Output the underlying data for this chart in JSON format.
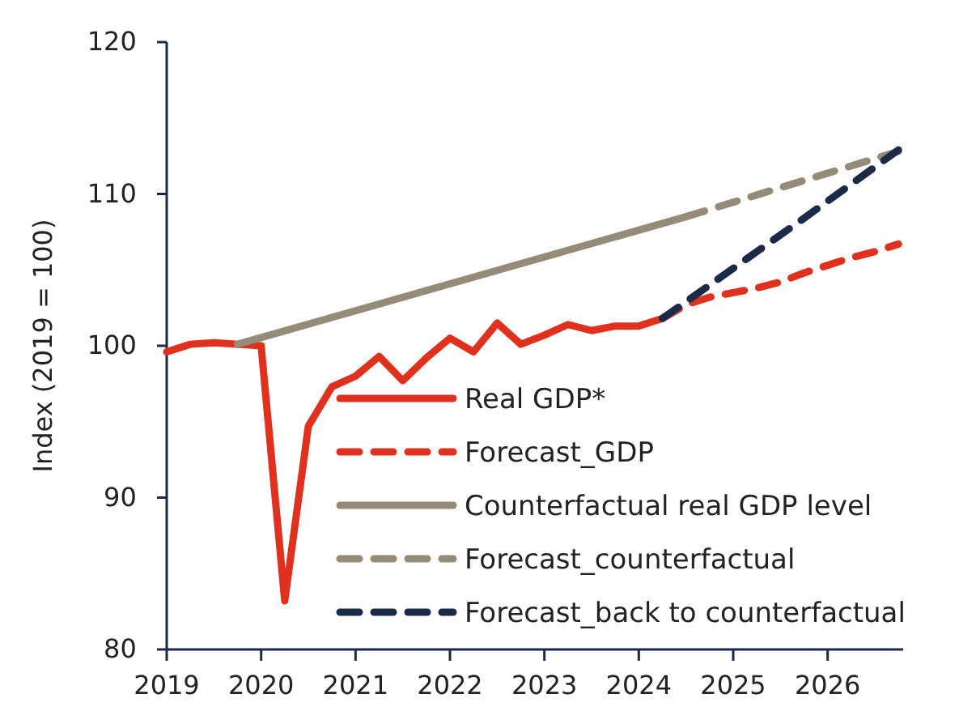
{
  "chart_data": {
    "type": "line",
    "ylabel": "Index (2019 = 100)",
    "xlim": [
      2019,
      2026.8
    ],
    "xticks": [
      2019,
      2020,
      2021,
      2022,
      2023,
      2024,
      2025,
      2026
    ],
    "ylim": [
      80,
      120
    ],
    "yticks": [
      80,
      90,
      100,
      110,
      120
    ],
    "grid": false,
    "legend": "bottom right",
    "series": [
      {
        "name": "Real GDP*",
        "color": "#e0301e",
        "line_style": "solid",
        "x": [
          2019,
          2019.25,
          2019.5,
          2019.75,
          2020,
          2020.25,
          2020.5,
          2020.75,
          2021,
          2021.25,
          2021.5,
          2021.75,
          2022,
          2022.25,
          2022.5,
          2022.75,
          2023,
          2023.25,
          2023.5,
          2023.75,
          2024,
          2024.25
        ],
        "values": [
          99.6,
          100.1,
          100.2,
          100.1,
          100.0,
          83.2,
          94.7,
          97.3,
          98.0,
          99.3,
          97.7,
          99.2,
          100.5,
          99.6,
          101.5,
          100.1,
          100.7,
          101.4,
          101.0,
          101.3,
          101.3,
          101.8
        ]
      },
      {
        "name": "Forecast_GDP",
        "color": "#e0301e",
        "line_style": "dashed",
        "x": [
          2024.25,
          2024.5,
          2024.75,
          2025,
          2025.25,
          2025.5,
          2025.75,
          2026,
          2026.25,
          2026.5,
          2026.75
        ],
        "values": [
          101.8,
          102.7,
          103.2,
          103.5,
          103.8,
          104.2,
          104.8,
          105.3,
          105.8,
          106.2,
          106.7
        ]
      },
      {
        "name": "Counterfactual real GDP level",
        "color": "#958b78",
        "line_style": "solid",
        "x": [
          2019.75,
          2024.5
        ],
        "values": [
          100.1,
          108.5
        ]
      },
      {
        "name": "Forecast_counterfactual",
        "color": "#958b78",
        "line_style": "dashed",
        "x": [
          2024.5,
          2026.75
        ],
        "values": [
          108.5,
          112.8
        ]
      },
      {
        "name": "Forecast_back to counterfactual",
        "color": "#1b2a47",
        "line_style": "dashed",
        "x": [
          2024.25,
          2025,
          2025.75,
          2026.75
        ],
        "values": [
          101.8,
          105.1,
          108.4,
          112.9
        ]
      }
    ]
  }
}
